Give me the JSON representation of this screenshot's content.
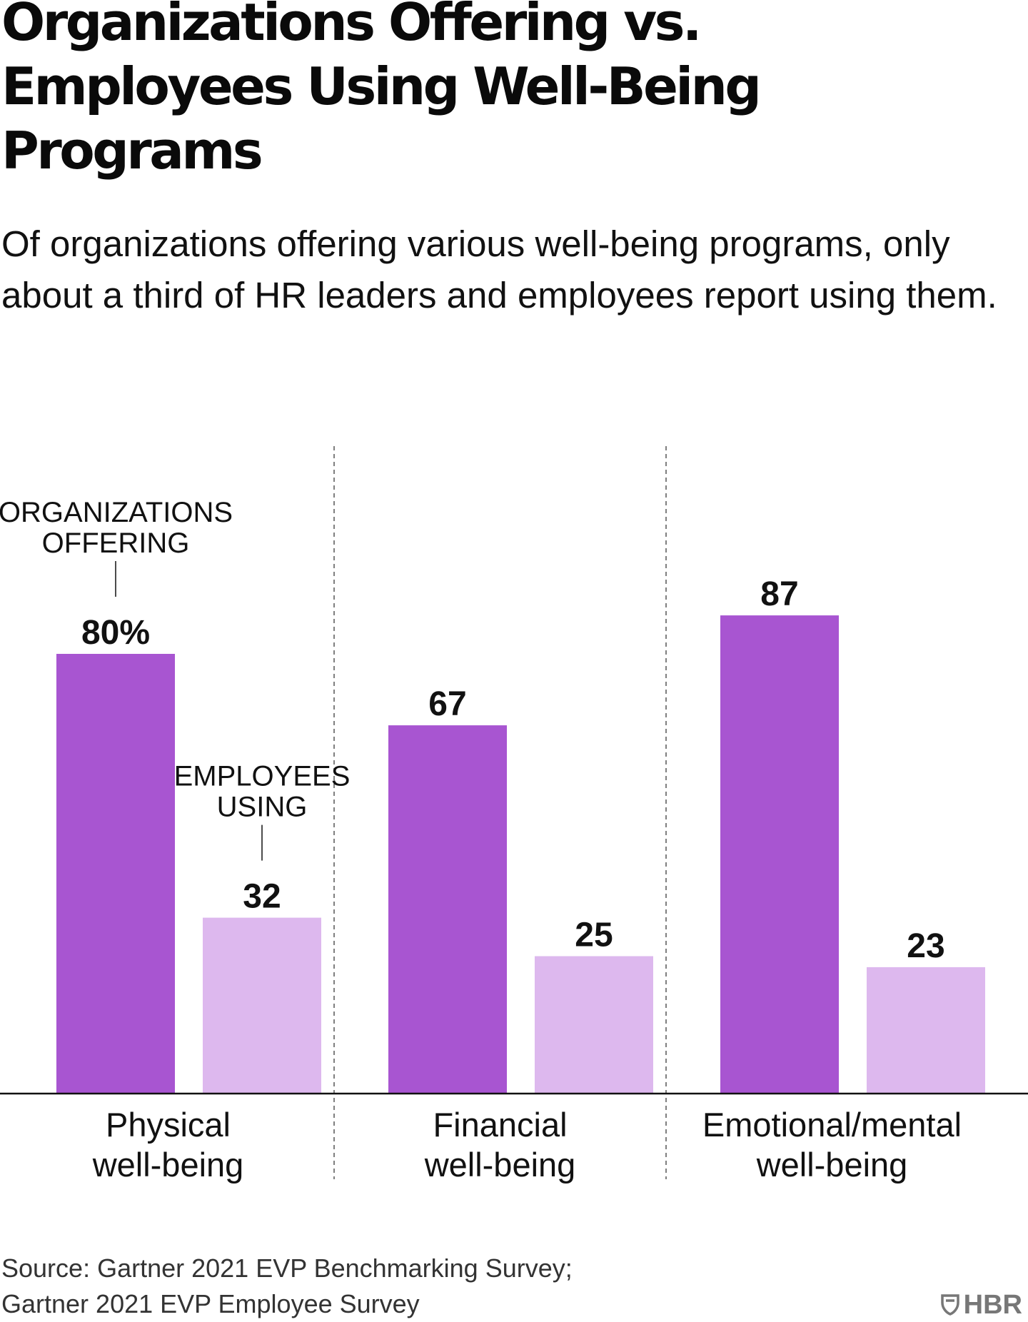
{
  "title": "Organizations Offering vs. Employees Using Well-Being Programs",
  "subtitle": "Of organizations offering various well-being programs, only about a third of HR leaders and employees report using them.",
  "source_lines": [
    "Source: Gartner 2021 EVP Benchmarking Survey;",
    "Gartner 2021 EVP Employee Survey"
  ],
  "brand": "HBR",
  "brand_icon": "shield-icon",
  "colors": {
    "organizations_offering": "#a855d1",
    "employees_using": "#ddb8ee",
    "axis": "#111111",
    "divider": "#555555"
  },
  "chart_data": {
    "type": "bar",
    "title": "Organizations Offering vs. Employees Using Well-Being Programs",
    "categories": [
      "Physical well-being",
      "Financial well-being",
      "Emotional/mental well-being"
    ],
    "category_lines": [
      [
        "Physical",
        "well-being"
      ],
      [
        "Financial",
        "well-being"
      ],
      [
        "Emotional/mental",
        "well-being"
      ]
    ],
    "series": [
      {
        "name": "ORGANIZATIONS OFFERING",
        "label_lines": [
          "ORGANIZATIONS",
          "OFFERING"
        ],
        "values": [
          80,
          67,
          87
        ]
      },
      {
        "name": "EMPLOYEES USING",
        "label_lines": [
          "EMPLOYEES",
          "USING"
        ],
        "values": [
          32,
          25,
          23
        ]
      }
    ],
    "value_labels": [
      [
        "80%",
        "67",
        "87"
      ],
      [
        "32",
        "25",
        "23"
      ]
    ],
    "unit": "%",
    "ylim": [
      0,
      100
    ],
    "xlabel": "",
    "ylabel": "",
    "grid": false,
    "legend": "direct labels on first category"
  }
}
